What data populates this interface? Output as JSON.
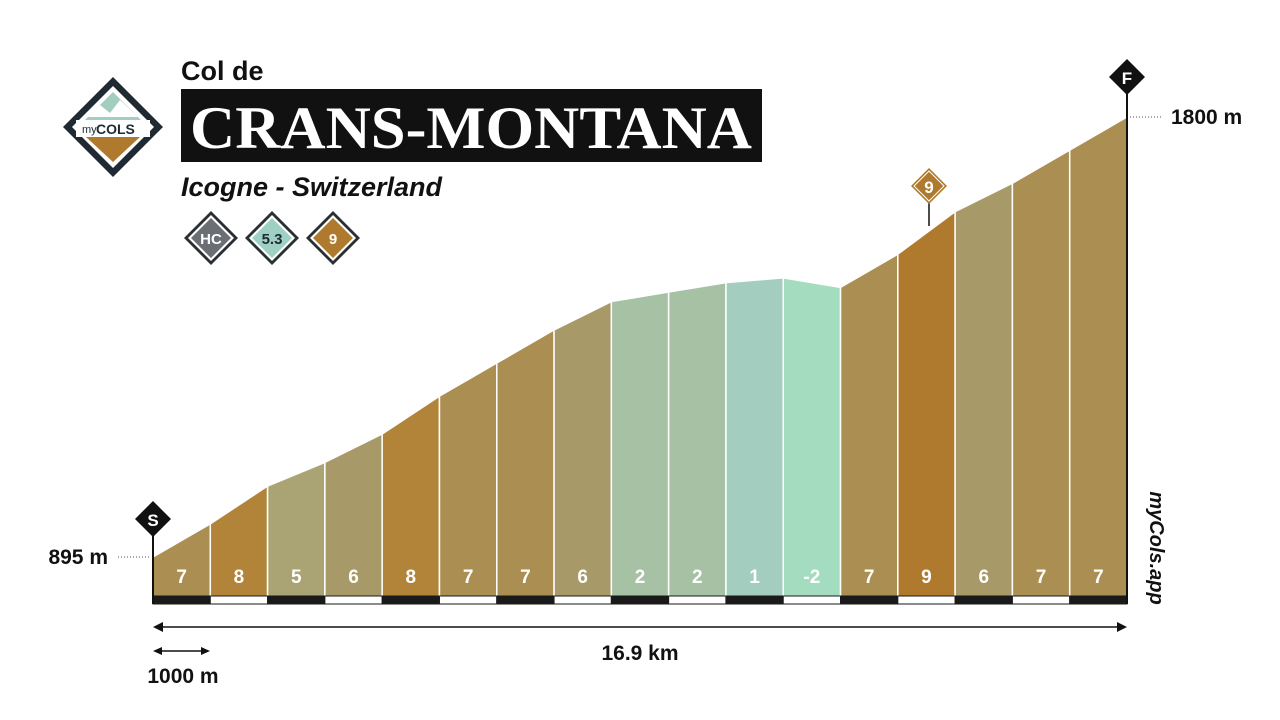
{
  "header": {
    "prefix": "Col de",
    "name": "CRANS-MONTANA",
    "location": "Icogne - Switzerland"
  },
  "logo": {
    "word_my": "my",
    "word_cols": "COLS"
  },
  "badges": [
    {
      "label": "HC",
      "color": "#6b6f73",
      "icon": "category-badge"
    },
    {
      "label": "5.3",
      "color": "#9fd0c4",
      "icon": "avg-gradient-badge"
    },
    {
      "label": "9",
      "color": "#b07a2e",
      "icon": "max-gradient-badge"
    }
  ],
  "markers": {
    "start": "S",
    "finish": "F",
    "max_label": "9"
  },
  "brand": "myCols.app",
  "colors": {
    "gradient_6": "#a89968",
    "gradient_7": "#ab8e52",
    "gradient_8": "#b2843a",
    "gradient_9": "#b07a2e",
    "gradient_2": "#a7c1a4",
    "gradient_1": "#a3cdbf",
    "gradient_neg2": "#a3dcbe",
    "gradient_5": "#aaa373",
    "dark": "#1a1a1a"
  },
  "chart_data": {
    "type": "area",
    "title": "CRANS-MONTANA",
    "total_distance_label": "16.9 km",
    "scale_label": "1000 m",
    "elevation_start_label": "895 m",
    "elevation_end_label": "1800 m",
    "elevation_start": 895,
    "elevation_end": 1800,
    "segment_length_m": 1000,
    "total_distance_km": 16.9,
    "segments": [
      {
        "km": 1,
        "gradient": 7,
        "label": "7"
      },
      {
        "km": 2,
        "gradient": 8,
        "label": "8"
      },
      {
        "km": 3,
        "gradient": 5,
        "label": "5"
      },
      {
        "km": 4,
        "gradient": 6,
        "label": "6"
      },
      {
        "km": 5,
        "gradient": 8,
        "label": "8"
      },
      {
        "km": 6,
        "gradient": 7,
        "label": "7"
      },
      {
        "km": 7,
        "gradient": 7,
        "label": "7"
      },
      {
        "km": 8,
        "gradient": 6,
        "label": "6"
      },
      {
        "km": 9,
        "gradient": 2,
        "label": "2"
      },
      {
        "km": 10,
        "gradient": 2,
        "label": "2"
      },
      {
        "km": 11,
        "gradient": 1,
        "label": "1"
      },
      {
        "km": 12,
        "gradient": -2,
        "label": "-2"
      },
      {
        "km": 13,
        "gradient": 7,
        "label": "7"
      },
      {
        "km": 14,
        "gradient": 9,
        "label": "9"
      },
      {
        "km": 15,
        "gradient": 6,
        "label": "6"
      },
      {
        "km": 16,
        "gradient": 7,
        "label": "7"
      },
      {
        "km": 17,
        "gradient": 7,
        "label": "7"
      }
    ]
  }
}
